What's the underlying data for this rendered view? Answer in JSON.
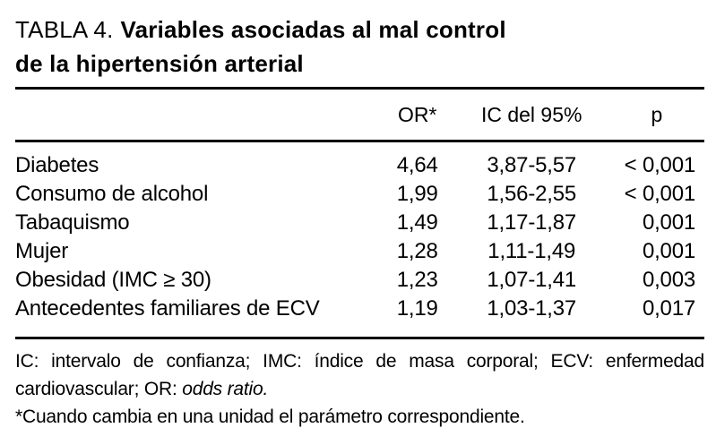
{
  "title": {
    "prefix": "TABLA 4.",
    "line1": "Variables asociadas al mal control",
    "line2": "de la hipertensión arterial"
  },
  "table": {
    "columns": {
      "label": "",
      "or": "OR*",
      "ci": "IC del 95%",
      "p": "p"
    },
    "rows": [
      {
        "label": "Diabetes",
        "or": "4,64",
        "ci": "3,87-5,57",
        "p": "< 0,001"
      },
      {
        "label": "Consumo de alcohol",
        "or": "1,99",
        "ci": "1,56-2,55",
        "p": "< 0,001"
      },
      {
        "label": "Tabaquismo",
        "or": "1,49",
        "ci": "1,17-1,87",
        "p": "0,001"
      },
      {
        "label": "Mujer",
        "or": "1,28",
        "ci": "1,11-1,49",
        "p": "0,001"
      },
      {
        "label": "Obesidad (IMC ≥ 30)",
        "or": "1,23",
        "ci": "1,07-1,41",
        "p": "0,003"
      },
      {
        "label": "Antecedentes familiares de ECV",
        "or": "1,19",
        "ci": "1,03-1,37",
        "p": "0,017"
      }
    ]
  },
  "footnotes": {
    "abbrev_line1": "IC: intervalo de confianza; IMC: índice de masa corporal; ECV: enfermedad",
    "abbrev_line2_prefix": "cardiovascular; OR: ",
    "abbrev_line2_italic": "odds ratio.",
    "asterisk_note": "*Cuando cambia en una unidad el parámetro correspondiente."
  },
  "colors": {
    "text": "#000000",
    "background": "#ffffff",
    "rule": "#000000"
  }
}
